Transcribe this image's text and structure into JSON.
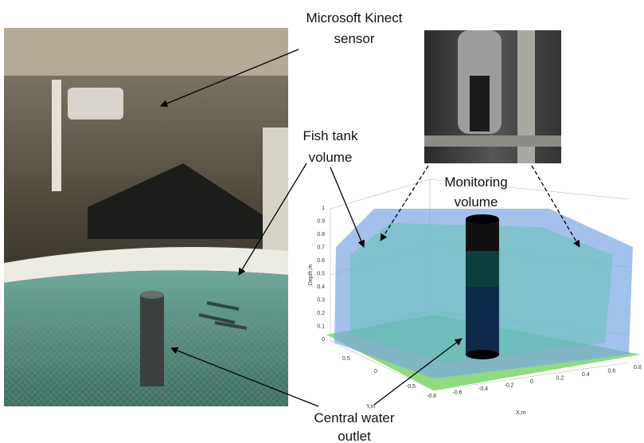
{
  "labels": {
    "kinect": [
      "Microsoft Kinect",
      "sensor"
    ],
    "fish_tank": [
      "Fish tank",
      "volume"
    ],
    "monitoring": [
      "Monitoring",
      "volume"
    ],
    "outlet": [
      "Central water",
      "outlet"
    ]
  },
  "plot": {
    "z_label": "Depth,m",
    "z_ticks": [
      "0",
      "0.1",
      "0.2",
      "0.3",
      "0.4",
      "0.5",
      "0.6",
      "0.7",
      "0.8",
      "0.9",
      "1"
    ],
    "y_label": "Y,m",
    "y_ticks": [
      "0.5",
      "0",
      "-0.5"
    ],
    "x_label": "X,m",
    "x_ticks": [
      "-0.8",
      "-0.6",
      "-0.4",
      "-0.2",
      "0",
      "0.2",
      "0.4",
      "0.6",
      "0.8"
    ]
  }
}
